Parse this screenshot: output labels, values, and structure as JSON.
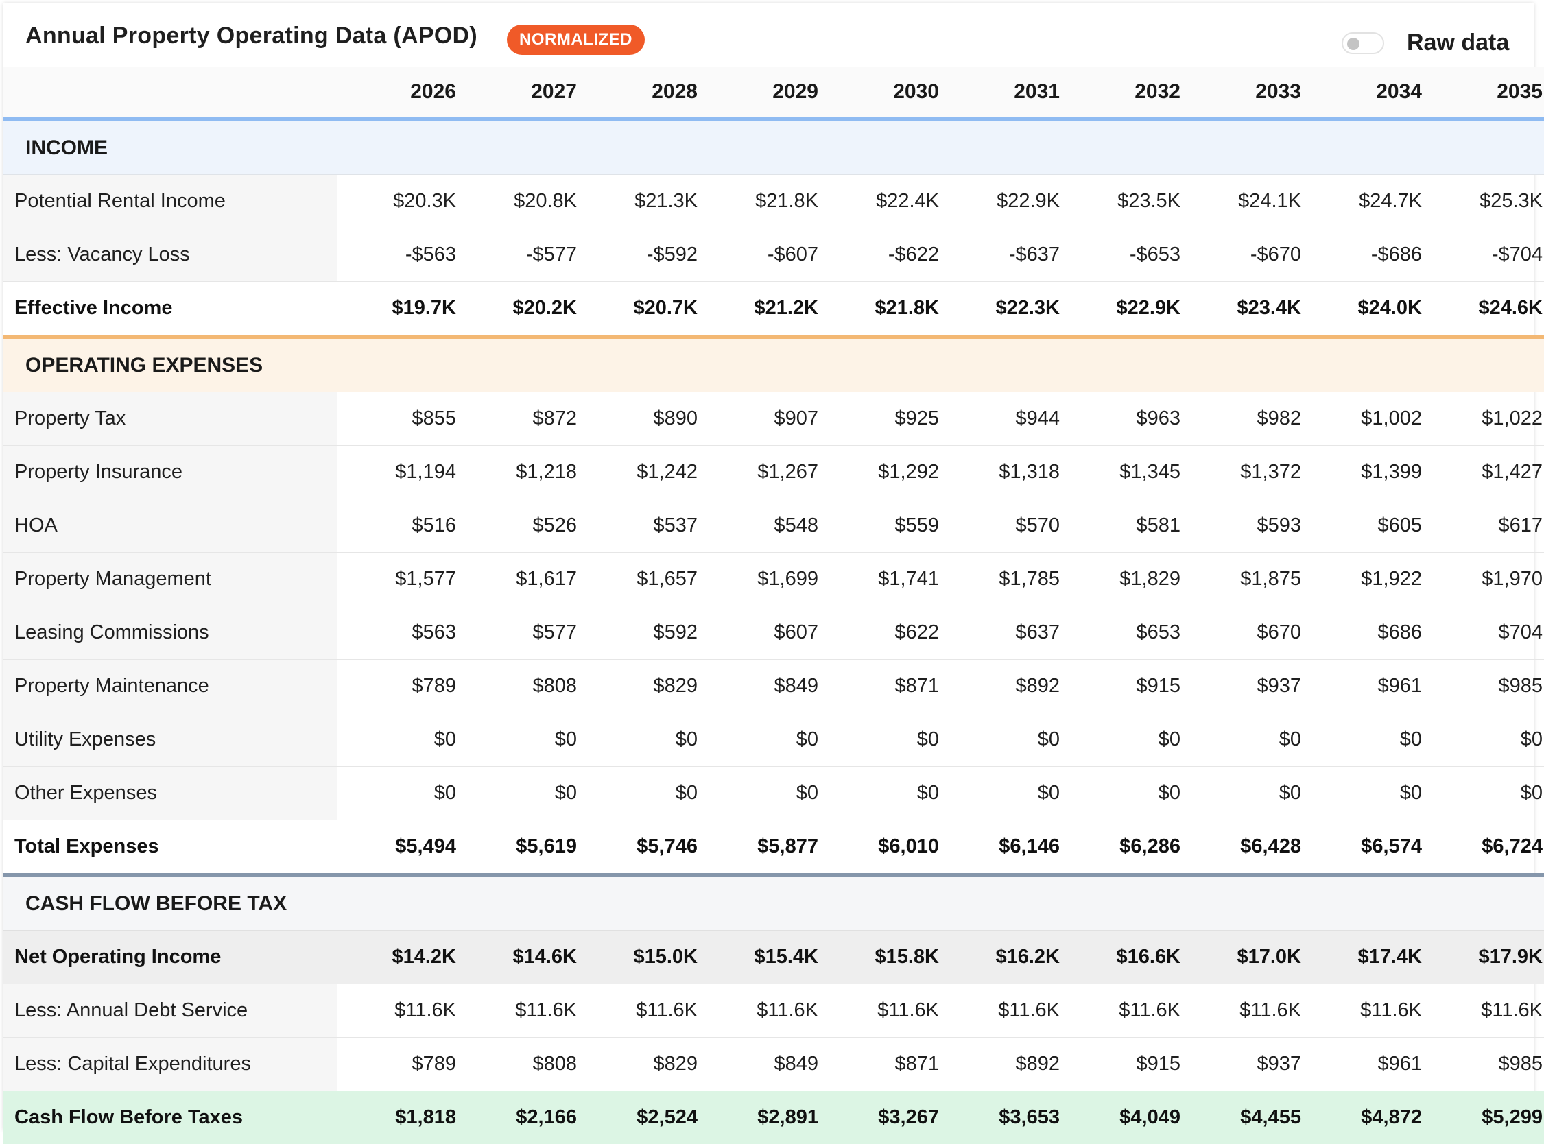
{
  "header": {
    "title": "Annual Property Operating Data (APOD)",
    "badge": "NORMALIZED",
    "toggle_label": "Raw data",
    "toggle_on": false
  },
  "colors": {
    "badge": "#f05a28",
    "income_accent": "#8fbbf2",
    "expenses_accent": "#f3b874",
    "cashflow_accent": "#8596ab",
    "cash_flow_row_bg": "#dcf5e4"
  },
  "years": [
    "2026",
    "2027",
    "2028",
    "2029",
    "2030",
    "2031",
    "2032",
    "2033",
    "2034",
    "2035"
  ],
  "sections": {
    "income": "INCOME",
    "expenses": "OPERATING EXPENSES",
    "cash_flow": "CASH FLOW BEFORE TAX"
  },
  "rows": {
    "potential_rental_income": {
      "label": "Potential Rental Income",
      "values": [
        "$20.3K",
        "$20.8K",
        "$21.3K",
        "$21.8K",
        "$22.4K",
        "$22.9K",
        "$23.5K",
        "$24.1K",
        "$24.7K",
        "$25.3K"
      ]
    },
    "vacancy_loss": {
      "label": "Less: Vacancy Loss",
      "values": [
        "-$563",
        "-$577",
        "-$592",
        "-$607",
        "-$622",
        "-$637",
        "-$653",
        "-$670",
        "-$686",
        "-$704"
      ]
    },
    "effective_income": {
      "label": "Effective Income",
      "values": [
        "$19.7K",
        "$20.2K",
        "$20.7K",
        "$21.2K",
        "$21.8K",
        "$22.3K",
        "$22.9K",
        "$23.4K",
        "$24.0K",
        "$24.6K"
      ]
    },
    "property_tax": {
      "label": "Property Tax",
      "values": [
        "$855",
        "$872",
        "$890",
        "$907",
        "$925",
        "$944",
        "$963",
        "$982",
        "$1,002",
        "$1,022"
      ]
    },
    "property_insurance": {
      "label": "Property Insurance",
      "values": [
        "$1,194",
        "$1,218",
        "$1,242",
        "$1,267",
        "$1,292",
        "$1,318",
        "$1,345",
        "$1,372",
        "$1,399",
        "$1,427"
      ]
    },
    "hoa": {
      "label": "HOA",
      "values": [
        "$516",
        "$526",
        "$537",
        "$548",
        "$559",
        "$570",
        "$581",
        "$593",
        "$605",
        "$617"
      ]
    },
    "property_management": {
      "label": "Property Management",
      "values": [
        "$1,577",
        "$1,617",
        "$1,657",
        "$1,699",
        "$1,741",
        "$1,785",
        "$1,829",
        "$1,875",
        "$1,922",
        "$1,970"
      ]
    },
    "leasing_commissions": {
      "label": "Leasing Commissions",
      "values": [
        "$563",
        "$577",
        "$592",
        "$607",
        "$622",
        "$637",
        "$653",
        "$670",
        "$686",
        "$704"
      ]
    },
    "property_maintenance": {
      "label": "Property Maintenance",
      "values": [
        "$789",
        "$808",
        "$829",
        "$849",
        "$871",
        "$892",
        "$915",
        "$937",
        "$961",
        "$985"
      ]
    },
    "utility_expenses": {
      "label": "Utility Expenses",
      "values": [
        "$0",
        "$0",
        "$0",
        "$0",
        "$0",
        "$0",
        "$0",
        "$0",
        "$0",
        "$0"
      ]
    },
    "other_expenses": {
      "label": "Other Expenses",
      "values": [
        "$0",
        "$0",
        "$0",
        "$0",
        "$0",
        "$0",
        "$0",
        "$0",
        "$0",
        "$0"
      ]
    },
    "total_expenses": {
      "label": "Total Expenses",
      "values": [
        "$5,494",
        "$5,619",
        "$5,746",
        "$5,877",
        "$6,010",
        "$6,146",
        "$6,286",
        "$6,428",
        "$6,574",
        "$6,724"
      ]
    },
    "net_operating_income": {
      "label": "Net Operating Income",
      "values": [
        "$14.2K",
        "$14.6K",
        "$15.0K",
        "$15.4K",
        "$15.8K",
        "$16.2K",
        "$16.6K",
        "$17.0K",
        "$17.4K",
        "$17.9K"
      ]
    },
    "annual_debt_service": {
      "label": "Less: Annual Debt Service",
      "values": [
        "$11.6K",
        "$11.6K",
        "$11.6K",
        "$11.6K",
        "$11.6K",
        "$11.6K",
        "$11.6K",
        "$11.6K",
        "$11.6K",
        "$11.6K"
      ]
    },
    "capital_expenditures": {
      "label": "Less: Capital Expenditures",
      "values": [
        "$789",
        "$808",
        "$829",
        "$849",
        "$871",
        "$892",
        "$915",
        "$937",
        "$961",
        "$985"
      ]
    },
    "cash_flow_before_taxes": {
      "label": "Cash Flow Before Taxes",
      "values": [
        "$1,818",
        "$2,166",
        "$2,524",
        "$2,891",
        "$3,267",
        "$3,653",
        "$4,049",
        "$4,455",
        "$4,872",
        "$5,299"
      ]
    }
  }
}
